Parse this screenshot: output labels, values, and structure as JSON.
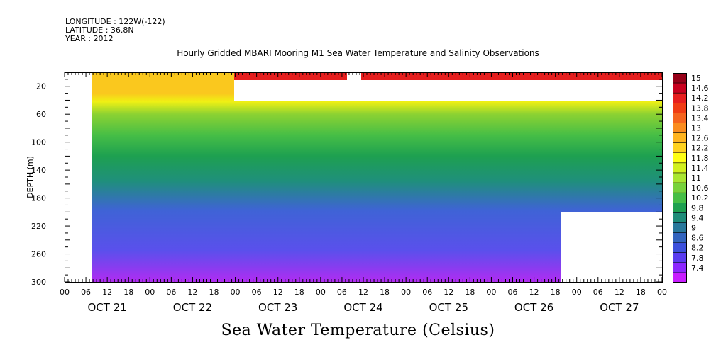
{
  "header": {
    "longitude": "LONGITUDE : 122W(-122)",
    "latitude": "LATITUDE : 36.8N",
    "year": "YEAR : 2012"
  },
  "chart_data": {
    "type": "heatmap",
    "title": "Hourly Gridded MBARI Mooring M1 Sea Water Temperature and Salinity Observations",
    "bottom_title": "Sea Water Temperature (Celsius)",
    "ylabel": "DEPTH (m)",
    "y_reversed": true,
    "ylim": [
      300,
      0
    ],
    "y_ticks": [
      20,
      60,
      100,
      140,
      180,
      220,
      260,
      300
    ],
    "x_hour_ticks": [
      "00",
      "06",
      "12",
      "18",
      "00",
      "06",
      "12",
      "18",
      "00",
      "06",
      "12",
      "18",
      "00",
      "06",
      "12",
      "18",
      "00",
      "06",
      "12",
      "18",
      "00",
      "06",
      "12",
      "18",
      "00",
      "06",
      "12",
      "18",
      "00"
    ],
    "x_day_labels": [
      "OCT 21",
      "OCT 22",
      "OCT 23",
      "OCT 24",
      "OCT 25",
      "OCT 26",
      "OCT 27"
    ],
    "colorbar": {
      "labels": [
        "15",
        "14.6",
        "14.2",
        "13.8",
        "13.4",
        "13",
        "12.6",
        "12.2",
        "11.8",
        "11.4",
        "11",
        "10.6",
        "10.2",
        "9.8",
        "9.4",
        "9",
        "8.6",
        "8.2",
        "7.8",
        "7.4"
      ],
      "colors": [
        "#960018",
        "#c8001e",
        "#e61e1e",
        "#f03c14",
        "#f5641e",
        "#fa8c1e",
        "#ffb41e",
        "#ffd21e",
        "#ffff14",
        "#d2f01e",
        "#aae632",
        "#78d23c",
        "#46be46",
        "#1ea050",
        "#1e8c78",
        "#28789b",
        "#3264be",
        "#3c50dc",
        "#5a3cf0",
        "#8c28ff",
        "#c81eff"
      ]
    },
    "gradient_colors": {
      "deep_violet": "#b02cf2",
      "deep_blue": "#5a50ec",
      "mid_blue": "#3f63d6",
      "teal": "#1f8f7c",
      "green": "#1ea050",
      "light_green": "#46be46",
      "lime": "#8cd232",
      "yellow": "#f0f014",
      "orange": "#fac81e",
      "surface_red": "#e61e1e"
    },
    "depth_profile": [
      {
        "depth": 5,
        "temp": 14.4
      },
      {
        "depth": 20,
        "temp": 13.0
      },
      {
        "depth": 40,
        "temp": 12.2
      },
      {
        "depth": 60,
        "temp": 11.3
      },
      {
        "depth": 100,
        "temp": 10.2
      },
      {
        "depth": 140,
        "temp": 9.6
      },
      {
        "depth": 180,
        "temp": 9.0
      },
      {
        "depth": 220,
        "temp": 8.4
      },
      {
        "depth": 260,
        "temp": 8.0
      },
      {
        "depth": 300,
        "temp": 7.6
      }
    ]
  }
}
